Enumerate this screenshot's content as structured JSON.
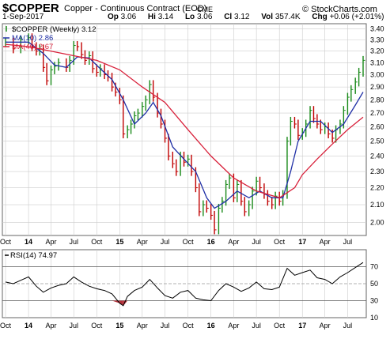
{
  "header": {
    "symbol": "$COPPER",
    "description": "Copper - Continuous Contract (EOD)",
    "exchange": "CME",
    "copyright": "© StockCharts.com",
    "date": "1-Sep-2017",
    "quote": {
      "open_label": "Op",
      "open": "3.06",
      "high_label": "Hi",
      "high": "3.14",
      "low_label": "Lo",
      "low": "3.06",
      "close_label": "Cl",
      "close": "3.12",
      "volume_label": "Vol",
      "volume": "357.4K",
      "change_label": "Chg",
      "change": "+0.06 (+2.01%)"
    }
  },
  "colors": {
    "price": "#1a8a1a",
    "price_down": "#c00000",
    "ma10": "#1f2fa6",
    "ma40": "#d8203a",
    "rsi_line": "#000000",
    "rsi_fill": "#b3303a",
    "grid": "#cccccc",
    "border": "#666666"
  },
  "chart_data": [
    {
      "type": "line",
      "panel": "price",
      "legend": [
        {
          "label": "$COPPER (Weekly) 3.12",
          "color": "#1a8a1a",
          "marker": "bar"
        },
        {
          "label": "MA(10) 2.86",
          "color": "#1f2fa6",
          "marker": "line"
        },
        {
          "label": "MA(40) 2.67",
          "color": "#d8203a",
          "marker": "line"
        }
      ],
      "legend_position": "top-left",
      "y_scale": "log",
      "ylim": [
        1.93,
        3.45
      ],
      "y_ticks": [
        2.0,
        2.1,
        2.2,
        2.3,
        2.4,
        2.5,
        2.6,
        2.7,
        2.8,
        2.9,
        3.0,
        3.1,
        3.2,
        3.3,
        3.4
      ],
      "x_range": [
        "2013-10-01",
        "2017-09-01"
      ],
      "x_ticks": [
        {
          "label": "Oct",
          "date": "2013-10-01"
        },
        {
          "label": "14",
          "date": "2014-01-01"
        },
        {
          "label": "Apr",
          "date": "2014-04-01"
        },
        {
          "label": "Jul",
          "date": "2014-07-01"
        },
        {
          "label": "Oct",
          "date": "2014-10-01"
        },
        {
          "label": "15",
          "date": "2015-01-01"
        },
        {
          "label": "Apr",
          "date": "2015-04-01"
        },
        {
          "label": "Jul",
          "date": "2015-07-01"
        },
        {
          "label": "Oct",
          "date": "2015-10-01"
        },
        {
          "label": "16",
          "date": "2016-01-01"
        },
        {
          "label": "Apr",
          "date": "2016-04-01"
        },
        {
          "label": "Jul",
          "date": "2016-07-01"
        },
        {
          "label": "Oct",
          "date": "2016-10-01"
        },
        {
          "label": "17",
          "date": "2017-01-01"
        },
        {
          "label": "Apr",
          "date": "2017-04-01"
        },
        {
          "label": "Jul",
          "date": "2017-07-01"
        }
      ],
      "grid": true,
      "series": [
        {
          "name": "$COPPER (Weekly)",
          "style": "close",
          "points": [
            [
              "2013-10-01",
              3.28
            ],
            [
              "2013-11-01",
              3.22
            ],
            [
              "2013-12-01",
              3.3
            ],
            [
              "2014-01-01",
              3.32
            ],
            [
              "2014-01-15",
              3.24
            ],
            [
              "2014-02-01",
              3.2
            ],
            [
              "2014-02-15",
              3.22
            ],
            [
              "2014-03-01",
              3.06
            ],
            [
              "2014-03-15",
              2.95
            ],
            [
              "2014-04-01",
              3.04
            ],
            [
              "2014-04-15",
              3.07
            ],
            [
              "2014-05-01",
              3.1
            ],
            [
              "2014-06-01",
              3.06
            ],
            [
              "2014-06-15",
              3.12
            ],
            [
              "2014-07-01",
              3.25
            ],
            [
              "2014-07-15",
              3.24
            ],
            [
              "2014-08-01",
              3.17
            ],
            [
              "2014-08-15",
              3.12
            ],
            [
              "2014-09-01",
              3.16
            ],
            [
              "2014-09-15",
              3.05
            ],
            [
              "2014-10-01",
              3.02
            ],
            [
              "2014-10-15",
              3.05
            ],
            [
              "2014-11-01",
              3.0
            ],
            [
              "2014-11-15",
              2.98
            ],
            [
              "2014-12-01",
              2.9
            ],
            [
              "2014-12-15",
              2.86
            ],
            [
              "2015-01-01",
              2.8
            ],
            [
              "2015-01-15",
              2.55
            ],
            [
              "2015-02-01",
              2.58
            ],
            [
              "2015-02-15",
              2.62
            ],
            [
              "2015-03-01",
              2.68
            ],
            [
              "2015-03-15",
              2.7
            ],
            [
              "2015-04-01",
              2.75
            ],
            [
              "2015-04-15",
              2.8
            ],
            [
              "2015-05-01",
              2.92
            ],
            [
              "2015-05-15",
              2.82
            ],
            [
              "2015-06-01",
              2.7
            ],
            [
              "2015-06-15",
              2.62
            ],
            [
              "2015-07-01",
              2.52
            ],
            [
              "2015-07-15",
              2.4
            ],
            [
              "2015-08-01",
              2.35
            ],
            [
              "2015-08-15",
              2.3
            ],
            [
              "2015-09-01",
              2.4
            ],
            [
              "2015-09-15",
              2.36
            ],
            [
              "2015-10-01",
              2.38
            ],
            [
              "2015-10-15",
              2.3
            ],
            [
              "2015-11-01",
              2.2
            ],
            [
              "2015-11-15",
              2.06
            ],
            [
              "2015-12-01",
              2.1
            ],
            [
              "2015-12-15",
              2.08
            ],
            [
              "2016-01-01",
              2.04
            ],
            [
              "2016-01-15",
              1.96
            ],
            [
              "2016-02-01",
              2.08
            ],
            [
              "2016-02-15",
              2.12
            ],
            [
              "2016-03-01",
              2.22
            ],
            [
              "2016-03-15",
              2.26
            ],
            [
              "2016-04-01",
              2.14
            ],
            [
              "2016-04-15",
              2.22
            ],
            [
              "2016-05-01",
              2.12
            ],
            [
              "2016-05-15",
              2.06
            ],
            [
              "2016-06-01",
              2.1
            ],
            [
              "2016-06-15",
              2.18
            ],
            [
              "2016-07-01",
              2.24
            ],
            [
              "2016-07-15",
              2.2
            ],
            [
              "2016-08-01",
              2.16
            ],
            [
              "2016-08-15",
              2.12
            ],
            [
              "2016-09-01",
              2.1
            ],
            [
              "2016-09-15",
              2.15
            ],
            [
              "2016-10-01",
              2.12
            ],
            [
              "2016-10-15",
              2.16
            ],
            [
              "2016-11-01",
              2.5
            ],
            [
              "2016-11-15",
              2.64
            ],
            [
              "2016-12-01",
              2.62
            ],
            [
              "2016-12-15",
              2.54
            ],
            [
              "2017-01-01",
              2.56
            ],
            [
              "2017-01-15",
              2.62
            ],
            [
              "2017-02-01",
              2.72
            ],
            [
              "2017-02-15",
              2.66
            ],
            [
              "2017-03-01",
              2.62
            ],
            [
              "2017-03-15",
              2.58
            ],
            [
              "2017-04-01",
              2.6
            ],
            [
              "2017-04-15",
              2.55
            ],
            [
              "2017-05-01",
              2.52
            ],
            [
              "2017-05-15",
              2.58
            ],
            [
              "2017-06-01",
              2.62
            ],
            [
              "2017-06-15",
              2.72
            ],
            [
              "2017-07-01",
              2.82
            ],
            [
              "2017-07-15",
              2.88
            ],
            [
              "2017-08-01",
              2.94
            ],
            [
              "2017-08-15",
              3.02
            ],
            [
              "2017-09-01",
              3.12
            ]
          ]
        },
        {
          "name": "MA(10)",
          "points": [
            [
              "2013-10-01",
              3.28
            ],
            [
              "2014-01-01",
              3.28
            ],
            [
              "2014-03-01",
              3.18
            ],
            [
              "2014-04-15",
              3.08
            ],
            [
              "2014-06-01",
              3.06
            ],
            [
              "2014-07-15",
              3.15
            ],
            [
              "2014-09-01",
              3.14
            ],
            [
              "2014-10-15",
              3.05
            ],
            [
              "2014-12-01",
              2.96
            ],
            [
              "2015-01-15",
              2.8
            ],
            [
              "2015-03-01",
              2.62
            ],
            [
              "2015-04-15",
              2.7
            ],
            [
              "2015-05-15",
              2.78
            ],
            [
              "2015-06-15",
              2.68
            ],
            [
              "2015-08-01",
              2.46
            ],
            [
              "2015-09-15",
              2.38
            ],
            [
              "2015-11-01",
              2.3
            ],
            [
              "2015-12-15",
              2.14
            ],
            [
              "2016-01-15",
              2.08
            ],
            [
              "2016-03-01",
              2.12
            ],
            [
              "2016-04-15",
              2.18
            ],
            [
              "2016-06-01",
              2.14
            ],
            [
              "2016-07-15",
              2.18
            ],
            [
              "2016-09-01",
              2.14
            ],
            [
              "2016-10-15",
              2.14
            ],
            [
              "2016-11-15",
              2.3
            ],
            [
              "2016-12-15",
              2.5
            ],
            [
              "2017-02-01",
              2.64
            ],
            [
              "2017-03-15",
              2.64
            ],
            [
              "2017-05-01",
              2.56
            ],
            [
              "2017-06-15",
              2.62
            ],
            [
              "2017-08-01",
              2.76
            ],
            [
              "2017-09-01",
              2.86
            ]
          ]
        },
        {
          "name": "MA(40)",
          "points": [
            [
              "2013-10-01",
              3.26
            ],
            [
              "2014-01-01",
              3.24
            ],
            [
              "2014-04-01",
              3.2
            ],
            [
              "2014-07-01",
              3.16
            ],
            [
              "2014-10-01",
              3.12
            ],
            [
              "2015-01-01",
              3.04
            ],
            [
              "2015-04-01",
              2.9
            ],
            [
              "2015-07-01",
              2.78
            ],
            [
              "2015-10-01",
              2.58
            ],
            [
              "2016-01-01",
              2.4
            ],
            [
              "2016-04-01",
              2.26
            ],
            [
              "2016-07-01",
              2.18
            ],
            [
              "2016-10-01",
              2.14
            ],
            [
              "2016-12-01",
              2.2
            ],
            [
              "2017-01-01",
              2.28
            ],
            [
              "2017-03-01",
              2.38
            ],
            [
              "2017-05-01",
              2.48
            ],
            [
              "2017-07-01",
              2.58
            ],
            [
              "2017-09-01",
              2.67
            ]
          ]
        }
      ]
    },
    {
      "type": "line",
      "panel": "rsi",
      "title": "RSI(14) 74.97",
      "ylim": [
        10,
        90
      ],
      "y_ticks": [
        10,
        30,
        50,
        70
      ],
      "reference_lines": [
        70,
        50,
        30
      ],
      "x_ticks": [
        "Oct",
        "14",
        "Apr",
        "Jul",
        "Oct",
        "15",
        "Apr",
        "Jul",
        "Oct",
        "16",
        "Apr",
        "Jul",
        "Oct",
        "17",
        "Apr",
        "Jul"
      ],
      "grid": true,
      "series": [
        {
          "name": "RSI(14)",
          "points": [
            [
              "2013-10-01",
              52
            ],
            [
              "2013-11-01",
              50
            ],
            [
              "2013-12-01",
              54
            ],
            [
              "2014-01-01",
              58
            ],
            [
              "2014-02-01",
              47
            ],
            [
              "2014-03-01",
              40
            ],
            [
              "2014-04-01",
              45
            ],
            [
              "2014-05-01",
              48
            ],
            [
              "2014-06-01",
              50
            ],
            [
              "2014-07-01",
              58
            ],
            [
              "2014-08-01",
              52
            ],
            [
              "2014-09-01",
              47
            ],
            [
              "2014-10-01",
              44
            ],
            [
              "2014-11-01",
              42
            ],
            [
              "2014-12-01",
              38
            ],
            [
              "2015-01-01",
              27
            ],
            [
              "2015-01-15",
              24
            ],
            [
              "2015-02-01",
              35
            ],
            [
              "2015-03-01",
              42
            ],
            [
              "2015-04-01",
              46
            ],
            [
              "2015-05-01",
              55
            ],
            [
              "2015-06-01",
              45
            ],
            [
              "2015-07-01",
              36
            ],
            [
              "2015-08-01",
              33
            ],
            [
              "2015-09-01",
              40
            ],
            [
              "2015-10-01",
              42
            ],
            [
              "2015-11-01",
              33
            ],
            [
              "2015-12-01",
              31
            ],
            [
              "2016-01-01",
              30
            ],
            [
              "2016-02-01",
              42
            ],
            [
              "2016-03-01",
              50
            ],
            [
              "2016-04-01",
              46
            ],
            [
              "2016-05-01",
              41
            ],
            [
              "2016-06-01",
              45
            ],
            [
              "2016-07-01",
              52
            ],
            [
              "2016-08-01",
              44
            ],
            [
              "2016-09-01",
              43
            ],
            [
              "2016-10-01",
              46
            ],
            [
              "2016-11-01",
              68
            ],
            [
              "2016-12-01",
              60
            ],
            [
              "2017-01-01",
              63
            ],
            [
              "2017-02-01",
              66
            ],
            [
              "2017-03-01",
              57
            ],
            [
              "2017-04-01",
              55
            ],
            [
              "2017-05-01",
              50
            ],
            [
              "2017-06-01",
              58
            ],
            [
              "2017-07-01",
              63
            ],
            [
              "2017-08-01",
              69
            ],
            [
              "2017-09-01",
              74.97
            ]
          ]
        }
      ]
    }
  ]
}
